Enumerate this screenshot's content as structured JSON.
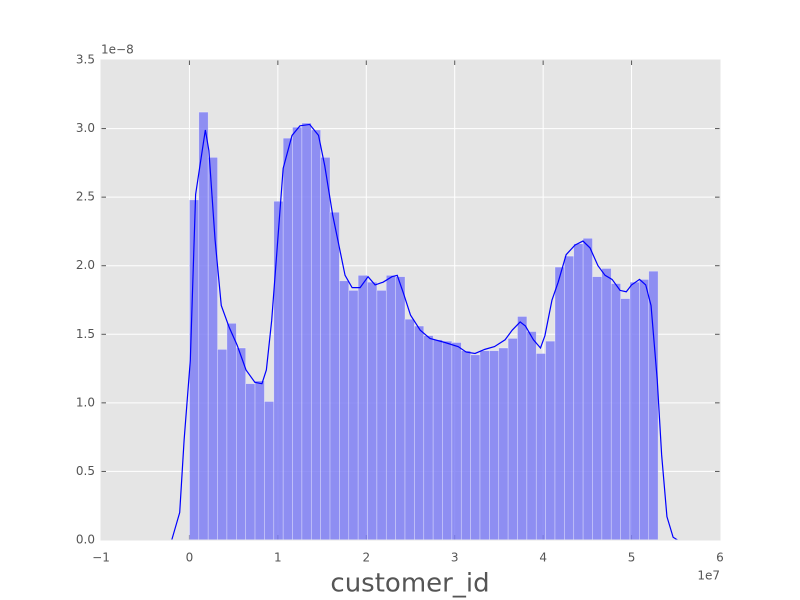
{
  "chart_data": {
    "type": "histogram",
    "xlabel": "customer_id",
    "x_offset_label": "1e7",
    "y_offset_label": "1e−8",
    "xlim": [
      -1,
      6
    ],
    "ylim": [
      0,
      3.5
    ],
    "xticks": [
      {
        "value": -1,
        "label": "−1"
      },
      0,
      1,
      2,
      3,
      4,
      5,
      6
    ],
    "yticks": [
      {
        "value": 0,
        "label": "0.0"
      },
      0.5,
      {
        "value": 1,
        "label": "1.0"
      },
      1.5,
      {
        "value": 2,
        "label": "2.0"
      },
      2.5,
      {
        "value": 3,
        "label": "3.0"
      },
      3.5
    ],
    "grid": true,
    "background": "#e5e5e5",
    "color": "#7f7ff5",
    "bins": [
      0,
      0.106,
      0.212,
      0.318,
      0.424,
      0.53,
      0.636,
      0.742,
      0.848,
      0.954,
      1.06,
      1.166,
      1.272,
      1.378,
      1.484,
      1.59,
      1.696,
      1.802,
      1.908,
      2.014,
      2.12,
      2.226,
      2.332,
      2.438,
      2.544,
      2.65,
      2.756,
      2.862,
      2.968,
      3.074,
      3.18,
      3.286,
      3.392,
      3.498,
      3.604,
      3.71,
      3.816,
      3.922,
      4.028,
      4.134,
      4.24,
      4.346,
      4.452,
      4.558,
      4.664,
      4.77,
      4.876,
      4.982,
      5.088,
      5.194,
      5.3
    ],
    "values": [
      2.48,
      3.12,
      2.79,
      1.39,
      1.58,
      1.4,
      1.14,
      1.16,
      1.01,
      2.47,
      2.93,
      3.01,
      3.04,
      2.99,
      2.79,
      2.39,
      1.89,
      1.82,
      1.93,
      1.88,
      1.82,
      1.93,
      1.92,
      1.61,
      1.56,
      1.49,
      1.46,
      1.45,
      1.44,
      1.38,
      1.35,
      1.38,
      1.38,
      1.4,
      1.47,
      1.63,
      1.52,
      1.36,
      1.45,
      1.99,
      2.07,
      2.16,
      2.2,
      1.92,
      1.98,
      1.87,
      1.76,
      1.88,
      1.9,
      1.96
    ],
    "line": {
      "color": "#0000ff",
      "x": [
        -0.2,
        -0.11,
        -0.06,
        0.01,
        0.07,
        0.18,
        0.22,
        0.29,
        0.36,
        0.45,
        0.54,
        0.64,
        0.74,
        0.82,
        0.87,
        0.93,
        0.99,
        1.06,
        1.16,
        1.25,
        1.36,
        1.46,
        1.53,
        1.62,
        1.76,
        1.84,
        1.93,
        2.02,
        2.1,
        2.19,
        2.29,
        2.35,
        2.42,
        2.5,
        2.61,
        2.72,
        2.89,
        3.04,
        3.13,
        3.23,
        3.34,
        3.45,
        3.57,
        3.65,
        3.74,
        3.8,
        3.89,
        3.97,
        4.02,
        4.1,
        4.17,
        4.26,
        4.36,
        4.45,
        4.53,
        4.62,
        4.7,
        4.78,
        4.87,
        4.94,
        5.0,
        5.09,
        5.16,
        5.22,
        5.29,
        5.34,
        5.4,
        5.47,
        5.52
      ],
      "values": [
        0,
        0.2,
        0.73,
        1.31,
        2.52,
        2.99,
        2.84,
        2.19,
        1.71,
        1.55,
        1.42,
        1.24,
        1.15,
        1.14,
        1.24,
        1.6,
        2.11,
        2.71,
        2.95,
        3.02,
        3.03,
        2.95,
        2.73,
        2.37,
        1.93,
        1.84,
        1.84,
        1.92,
        1.86,
        1.88,
        1.92,
        1.93,
        1.8,
        1.64,
        1.53,
        1.47,
        1.44,
        1.41,
        1.37,
        1.36,
        1.39,
        1.41,
        1.46,
        1.53,
        1.59,
        1.56,
        1.46,
        1.4,
        1.49,
        1.75,
        1.88,
        2.08,
        2.15,
        2.18,
        2.13,
        2.0,
        1.93,
        1.9,
        1.82,
        1.81,
        1.86,
        1.9,
        1.86,
        1.71,
        1.17,
        0.62,
        0.17,
        0.02,
        0
      ]
    }
  }
}
